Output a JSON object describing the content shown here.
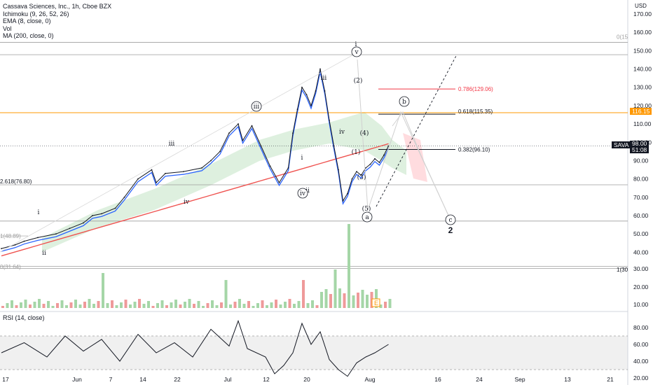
{
  "legend": {
    "title": "Cassava Sciences, Inc., 1h, Cboe BZX",
    "ichimoku": "Ichimoku (9, 26, 52, 26)",
    "ema": "EMA (8, close, 0)",
    "vol": "Vol",
    "ma": "MA (200, close, 0)",
    "rsi": "RSI (14, close)"
  },
  "currency": "USD",
  "price_tags": {
    "orange_line": "116.15",
    "ticker": "SAVA",
    "last_price": "98.00",
    "countdown": "51:08"
  },
  "fib_labels": {
    "f0786": "0.786(129.06)",
    "f0618": "0.618(115.35)",
    "f0382": "0.382(96.10)",
    "f2618": "2.618(76.80)",
    "f1_left": "1(48.89)",
    "f0_left": "0(31.64)",
    "f0_right": "0(15",
    "f1_right": "1(30"
  },
  "wave_labels": {
    "i1": "i",
    "ii1": "ii",
    "iii1": "iii",
    "iv1": "iv",
    "iii_c": "iii",
    "i2": "i",
    "ii2": "ii",
    "iv_c": "iv",
    "iii2": "iii",
    "iv2": "iv",
    "v_c": "v",
    "i3": "i",
    "w2": "(2)",
    "w1": "(1)",
    "w4": "(4)",
    "w3": "(3)",
    "w5": "(5)",
    "a_c": "a",
    "b_c": "b",
    "c_c": "c",
    "big2": "2",
    "e_tag": "E"
  },
  "colors": {
    "price": "#131722",
    "ema": "#2962ff",
    "ma200": "#ef5350",
    "orange_line": "#ff9800",
    "fib_red": "#f23645",
    "cloud_green": "#c8e6c9",
    "cloud_red": "#ffcdd2",
    "vol_up": "#a5d6a7",
    "vol_down": "#ef9a9a"
  },
  "chart_data": [
    {
      "type": "line",
      "title": "Cassava Sciences, Inc., 1h, Cboe BZX",
      "ylabel": "USD",
      "ylim": [
        40,
        170
      ],
      "x_ticks": [
        "17",
        "Jun",
        "7",
        "14",
        "22",
        "Jul",
        "12",
        "20",
        "Aug",
        "16",
        "24",
        "Sep",
        "13",
        "21"
      ],
      "y_ticks": [
        170,
        160,
        150,
        140,
        130,
        120,
        110,
        100,
        90,
        80,
        70,
        60,
        50,
        40
      ],
      "series": [
        {
          "name": "",
          "x": [
            0,
            3,
            5,
            8,
            12,
            15,
            18,
            20,
            22,
            25,
            27,
            30,
            33,
            34,
            36,
            40,
            44,
            46,
            48,
            50,
            52,
            53,
            55,
            57,
            59,
            61,
            63,
            64,
            65,
            66,
            67,
            68,
            69,
            70,
            71,
            72,
            73,
            74,
            75,
            76,
            77,
            78,
            79,
            80,
            81,
            82,
            83,
            84,
            85
          ],
          "values": [
            42,
            44,
            46,
            48,
            50,
            53,
            56,
            60,
            61,
            64,
            70,
            80,
            85,
            78,
            83,
            84,
            86,
            90,
            95,
            105,
            110,
            101,
            109,
            98,
            87,
            78,
            86,
            105,
            118,
            130,
            126,
            120,
            128,
            140,
            128,
            112,
            98,
            85,
            68,
            72,
            80,
            84,
            82,
            86,
            88,
            91,
            89,
            93,
            98
          ]
        }
      ],
      "reference_lines": [
        {
          "name": "0.786",
          "value": 129.06
        },
        {
          "name": "0.618",
          "value": 115.35
        },
        {
          "name": "0.382",
          "value": 96.1
        },
        {
          "name": "2.618",
          "value": 76.8
        },
        {
          "name": "orange",
          "value": 116.15
        }
      ]
    },
    {
      "type": "bar",
      "title": "Vol",
      "y_ticks": [
        30,
        20,
        10
      ]
    },
    {
      "type": "line",
      "title": "RSI (14, close)",
      "ylim": [
        15,
        90
      ],
      "y_ticks": [
        80,
        60,
        40,
        20
      ],
      "series": [
        {
          "name": "",
          "x": [
            0,
            5,
            10,
            14,
            18,
            22,
            26,
            30,
            34,
            38,
            42,
            46,
            50,
            52,
            54,
            58,
            60,
            62,
            64,
            66,
            68,
            70,
            72,
            74,
            76,
            78,
            80,
            82,
            85
          ],
          "values": [
            50,
            62,
            45,
            70,
            52,
            66,
            40,
            72,
            50,
            62,
            45,
            78,
            58,
            88,
            55,
            45,
            25,
            35,
            50,
            85,
            60,
            75,
            42,
            30,
            22,
            38,
            45,
            50,
            60
          ]
        }
      ]
    }
  ]
}
